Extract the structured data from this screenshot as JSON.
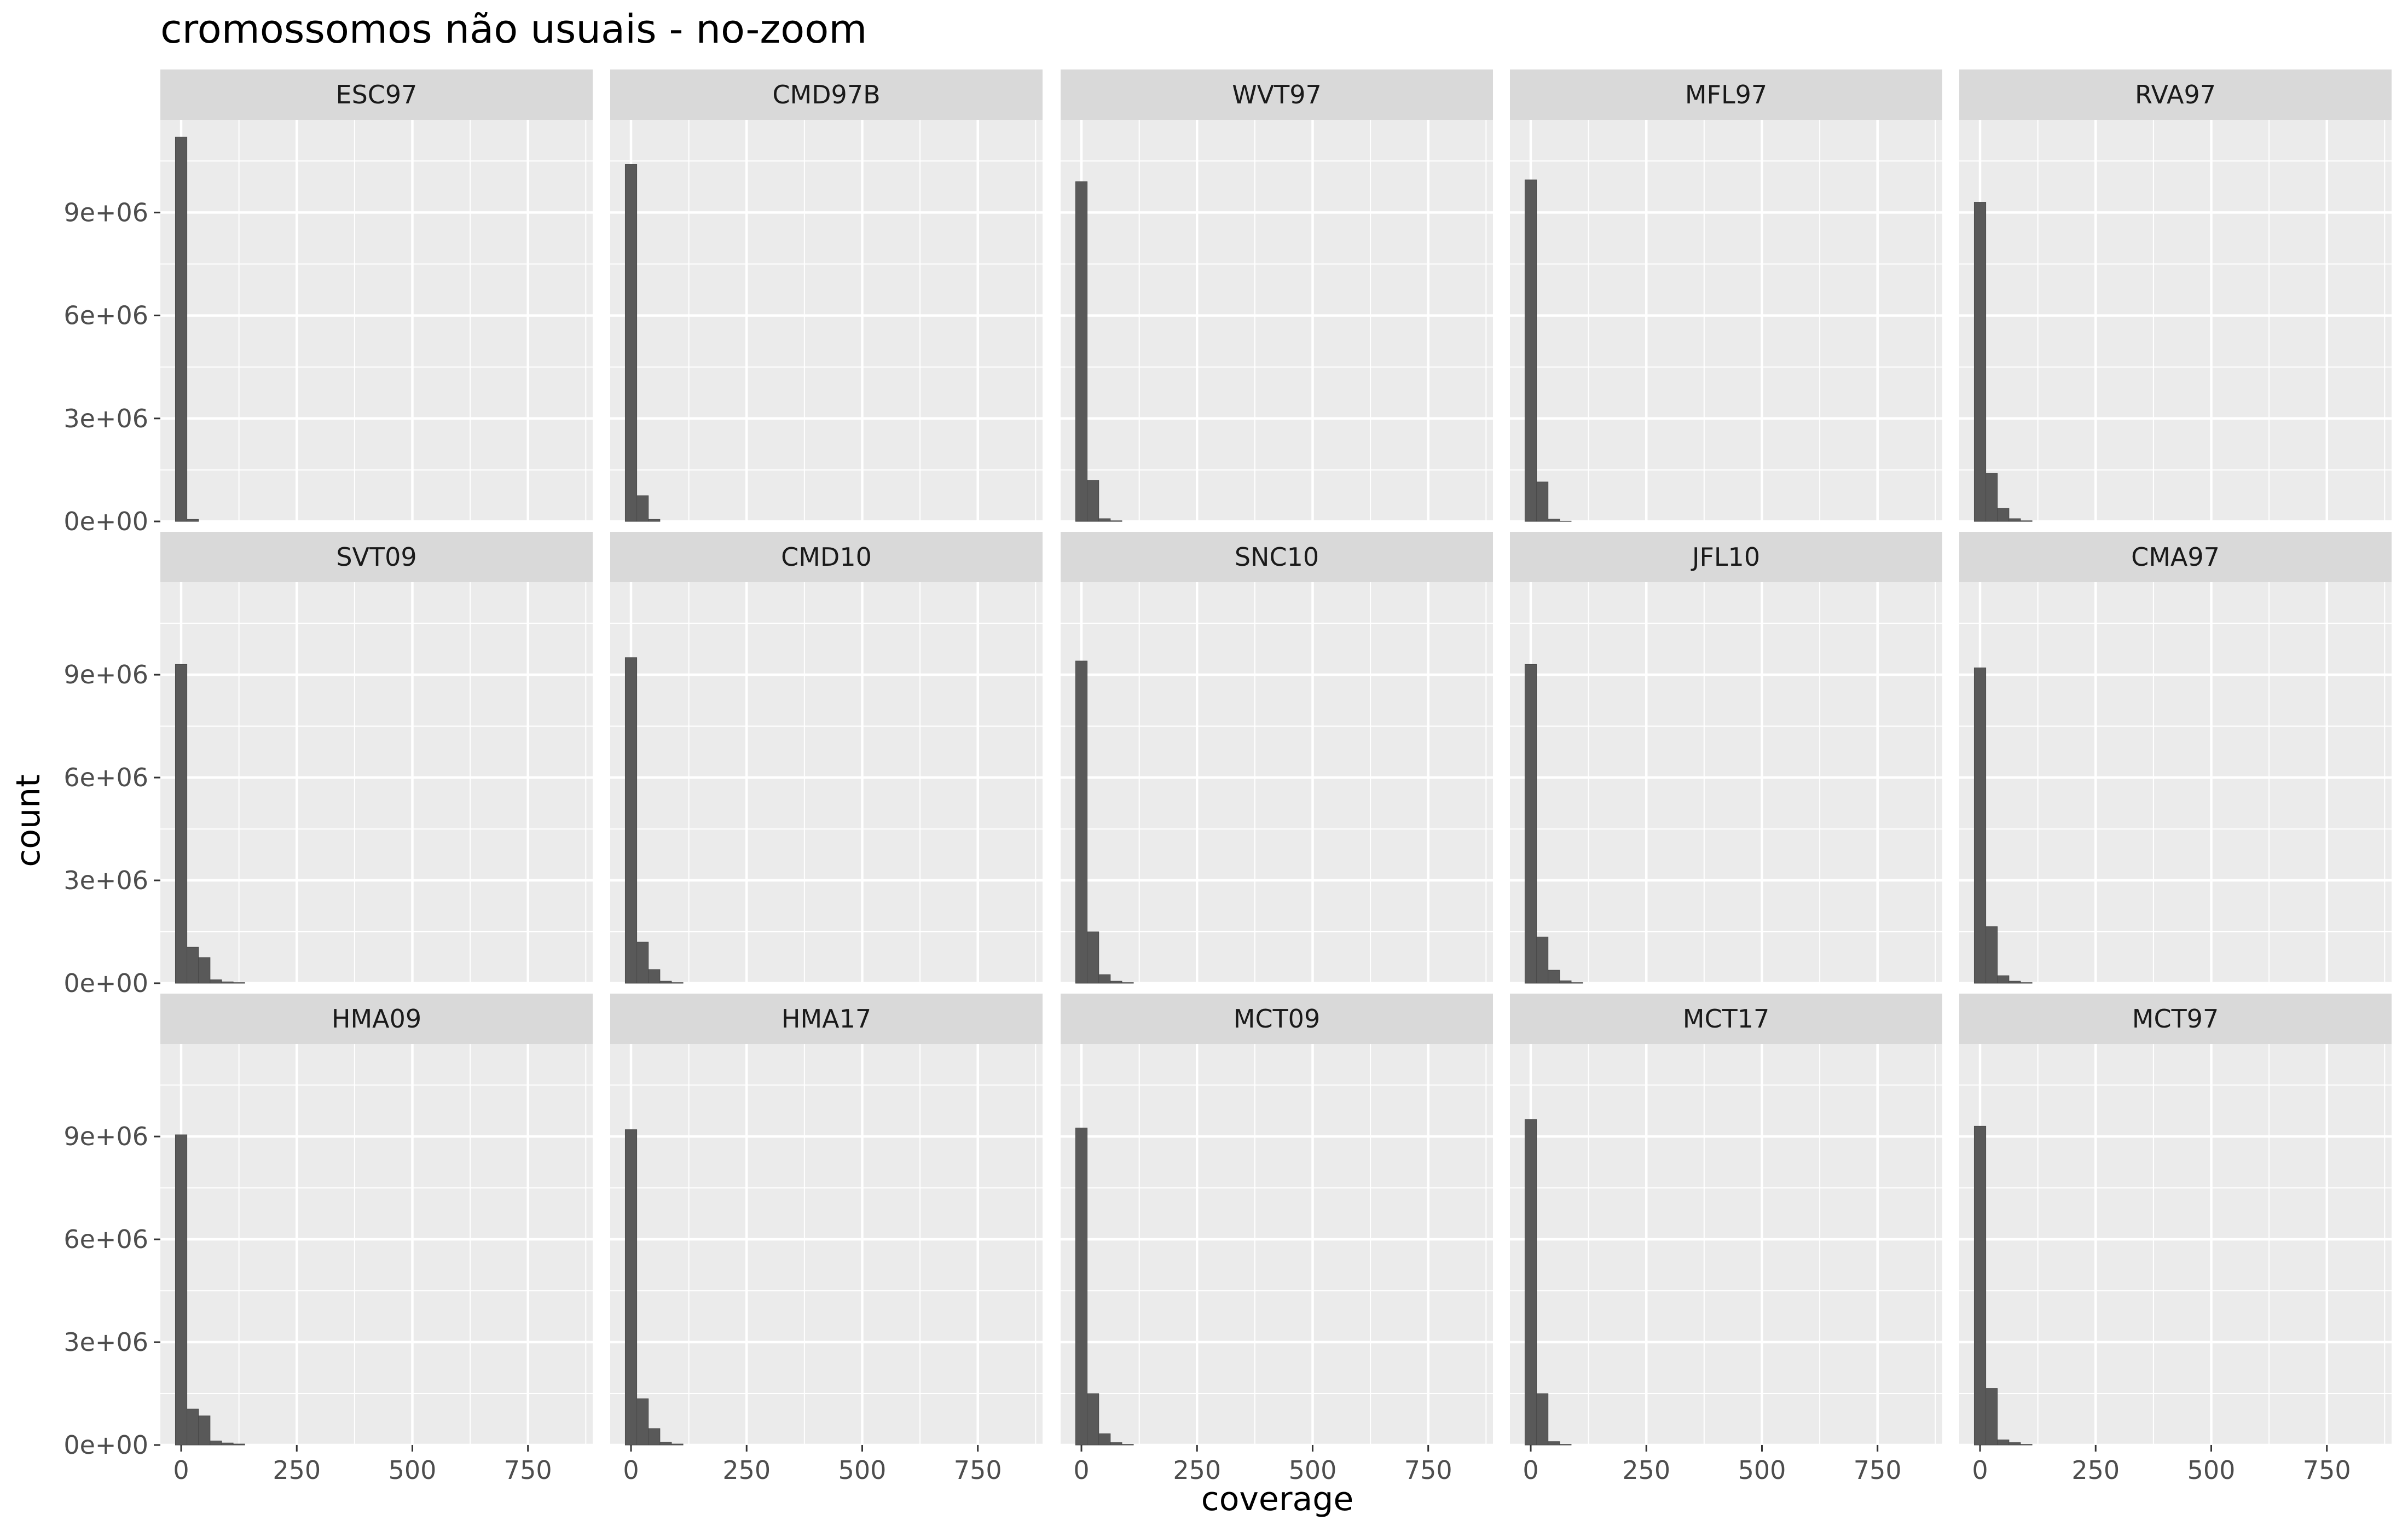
{
  "chart_data": {
    "type": "bar",
    "subtype": "histogram",
    "title": "cromossomos não usuais - no-zoom",
    "xlabel": "coverage",
    "ylabel": "count",
    "facet_layout": {
      "rows": 3,
      "cols": 5
    },
    "xlim": [
      -45,
      890
    ],
    "ylim": [
      0,
      11700000
    ],
    "x_ticks": [
      0,
      250,
      500,
      750
    ],
    "x_tick_labels": [
      "0",
      "250",
      "500",
      "750"
    ],
    "y_ticks": [
      0,
      3000000,
      6000000,
      9000000
    ],
    "y_tick_labels": [
      "0e+00",
      "3e+06",
      "6e+06",
      "9e+06"
    ],
    "bin_width": 25,
    "bin_centers": [
      0,
      25,
      50,
      75,
      100,
      125,
      150,
      175
    ],
    "grid": true,
    "legend": "none",
    "colors": {
      "bar": "#595959",
      "panel": "#ebebeb",
      "strip": "#d9d9d9",
      "grid": "#ffffff"
    },
    "panels": [
      {
        "name": "ESC97",
        "values": [
          11200000,
          60000,
          0,
          0,
          0,
          0,
          0,
          0
        ]
      },
      {
        "name": "CMD97B",
        "values": [
          10400000,
          750000,
          60000,
          0,
          0,
          0,
          0,
          0
        ]
      },
      {
        "name": "WVT97",
        "values": [
          9900000,
          1200000,
          80000,
          20000,
          0,
          0,
          0,
          0
        ]
      },
      {
        "name": "MFL97",
        "values": [
          9950000,
          1150000,
          70000,
          10000,
          0,
          0,
          0,
          0
        ]
      },
      {
        "name": "RVA97",
        "values": [
          9300000,
          1400000,
          380000,
          80000,
          20000,
          0,
          0,
          0
        ]
      },
      {
        "name": "SVT09",
        "values": [
          9300000,
          1050000,
          750000,
          100000,
          40000,
          20000,
          0,
          0
        ]
      },
      {
        "name": "CMD10",
        "values": [
          9500000,
          1200000,
          400000,
          60000,
          20000,
          0,
          0,
          0
        ]
      },
      {
        "name": "SNC10",
        "values": [
          9400000,
          1500000,
          250000,
          60000,
          20000,
          0,
          0,
          0
        ]
      },
      {
        "name": "JFL10",
        "values": [
          9300000,
          1350000,
          380000,
          70000,
          20000,
          0,
          0,
          0
        ]
      },
      {
        "name": "CMA97",
        "values": [
          9200000,
          1650000,
          220000,
          60000,
          20000,
          0,
          0,
          0
        ]
      },
      {
        "name": "HMA09",
        "values": [
          9050000,
          1050000,
          850000,
          120000,
          60000,
          30000,
          0,
          0
        ]
      },
      {
        "name": "HMA17",
        "values": [
          9200000,
          1350000,
          480000,
          80000,
          30000,
          0,
          0,
          0
        ]
      },
      {
        "name": "MCT09",
        "values": [
          9250000,
          1500000,
          330000,
          70000,
          20000,
          0,
          0,
          0
        ]
      },
      {
        "name": "MCT17",
        "values": [
          9500000,
          1500000,
          100000,
          20000,
          0,
          0,
          0,
          0
        ]
      },
      {
        "name": "MCT97",
        "values": [
          9300000,
          1650000,
          150000,
          70000,
          20000,
          0,
          0,
          0
        ]
      }
    ]
  }
}
